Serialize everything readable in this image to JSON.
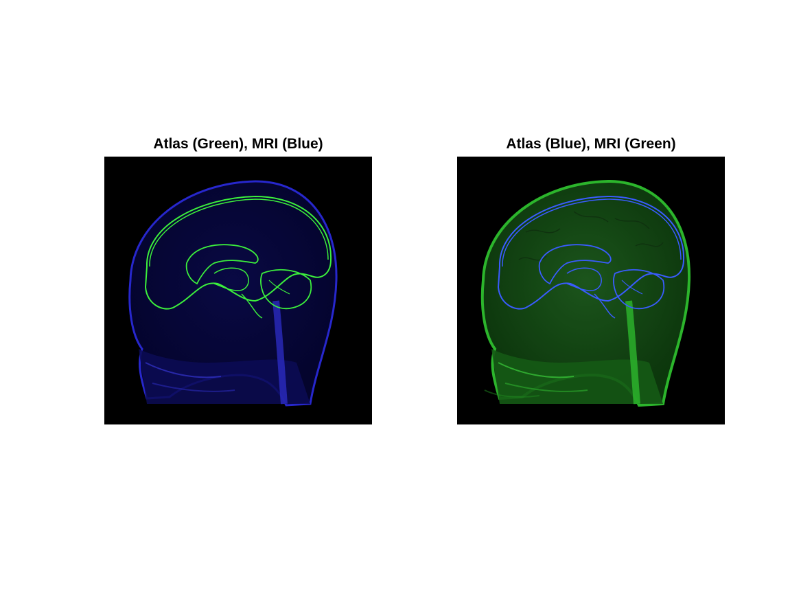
{
  "figure": {
    "left_panel": {
      "title": "Atlas (Green), MRI (Blue)",
      "mri_color": "#2a2ad8",
      "atlas_outline_color": "#3cf03c"
    },
    "right_panel": {
      "title": "Atlas (Blue), MRI (Green)",
      "mri_color": "#2fbf2f",
      "atlas_outline_color": "#3a5cff"
    }
  }
}
